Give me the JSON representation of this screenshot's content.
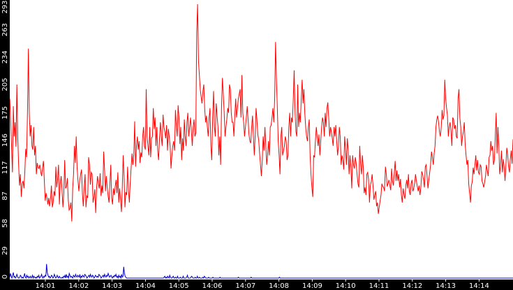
{
  "chart_data": {
    "type": "line",
    "x_tick_labels": [
      "14:01",
      "14:02",
      "14:03",
      "14:04",
      "14:05",
      "14:06",
      "14:07",
      "14:08",
      "14:09",
      "14:10",
      "14:11",
      "14:12",
      "14:13",
      "14:14"
    ],
    "y_tick_labels": [
      "0",
      "29",
      "58",
      "87",
      "117",
      "146",
      "175",
      "205",
      "234",
      "263",
      "293"
    ],
    "ylim": [
      0,
      293
    ],
    "grid": false,
    "colors": {
      "background": "#ffffff",
      "axis_band": "#000000",
      "series_red": "#ff0000",
      "series_blue": "#0000cc",
      "tick_text": "#ffffff"
    },
    "series": [
      {
        "color": "#ff0000",
        "values": [
          190,
          168,
          140,
          112,
          182,
          150,
          165,
          139,
          205,
          150,
          120,
          98,
          110,
          86,
          100,
          103,
          95,
          113,
          137,
          128,
          176,
          243,
          175,
          150,
          162,
          140,
          136,
          160,
          130,
          140,
          110,
          122,
          117,
          116,
          120,
          112,
          108,
          117,
          124,
          103,
          82,
          90,
          85,
          78,
          85,
          76,
          84,
          98,
          75,
          80,
          92,
          87,
          118,
          96,
          105,
          120,
          78,
          100,
          108,
          93,
          75,
          90,
          125,
          95,
          97,
          106,
          83,
          72,
          74,
          80,
          60,
          95,
          110,
          140,
          122,
          150,
          117,
          103,
          92,
          104,
          110,
          115,
          89,
          76,
          96,
          110,
          75,
          87,
          85,
          128,
          120,
          99,
          112,
          110,
          80,
          86,
          94,
          69,
          95,
          108,
          100,
          95,
          111,
          87,
          98,
          90,
          134,
          115,
          92,
          108,
          96,
          87,
          80,
          100,
          120,
          85,
          78,
          95,
          88,
          97,
          104,
          90,
          112,
          80,
          95,
          84,
          70,
          96,
          130,
          108,
          75,
          91,
          88,
          118,
          93,
          80,
          102,
          117,
          132,
          120,
          131,
          166,
          118,
          140,
          150,
          136,
          145,
          122,
          133,
          128,
          150,
          160,
          140,
          136,
          200,
          150,
          140,
          130,
          160,
          128,
          148,
          150,
          180,
          158,
          170,
          140,
          160,
          135,
          125,
          148,
          165,
          150,
          140,
          173,
          160,
          155,
          148,
          162,
          135,
          158,
          150,
          140,
          116,
          130,
          140,
          145,
          135,
          178,
          162,
          150,
          183,
          170,
          142,
          160,
          125,
          148,
          135,
          168,
          150,
          140,
          165,
          175,
          150,
          160,
          170,
          155,
          140,
          160,
          168,
          150,
          154,
          260,
          290,
          230,
          215,
          200,
          192,
          185,
          198,
          205,
          180,
          165,
          172,
          160,
          150,
          170,
          180,
          140,
          125,
          170,
          198,
          160,
          150,
          185,
          172,
          160,
          130,
          150,
          120,
          180,
          212,
          195,
          175,
          150,
          160,
          168,
          180,
          175,
          205,
          200,
          175,
          165,
          165,
          150,
          172,
          190,
          170,
          180,
          190,
          195,
          200,
          170,
          215,
          175,
          165,
          150,
          160,
          170,
          182,
          168,
          152,
          145,
          143,
          160,
          172,
          150,
          130,
          150,
          180,
          168,
          152,
          146,
          132,
          120,
          108,
          125,
          150,
          135,
          160,
          140,
          120,
          130,
          145,
          130,
          160,
          162,
          170,
          180,
          165,
          190,
          250,
          210,
          180,
          145,
          130,
          110,
          150,
          160,
          130,
          135,
          140,
          150,
          145,
          125,
          130,
          160,
          175,
          150,
          170,
          165,
          190,
          220,
          175,
          155,
          150,
          205,
          160,
          175,
          165,
          190,
          210,
          185,
          200,
          175,
          160,
          150,
          145,
          160,
          168,
          130,
          110,
          96,
          86,
          130,
          128,
          146,
          160,
          150,
          140,
          152,
          130,
          145,
          160,
          170,
          165,
          150,
          175,
          160,
          180,
          186,
          170,
          150,
          160,
          155,
          148,
          140,
          160,
          150,
          162,
          145,
          130,
          140,
          160,
          150,
          120,
          130,
          125,
          115,
          150,
          136,
          120,
          148,
          135,
          110,
          130,
          118,
          95,
          130,
          120,
          116,
          128,
          122,
          110,
          100,
          96,
          140,
          120,
          110,
          130,
          118,
          90,
          96,
          88,
          110,
          112,
          104,
          80,
          98,
          102,
          110,
          98,
          83,
          88,
          92,
          76,
          80,
          68,
          75,
          82,
          88,
          100,
          97,
          96,
          92,
          118,
          110,
          97,
          100,
          104,
          98,
          93,
          116,
          103,
          98,
          112,
          124,
          103,
          114,
          103,
          110,
          96,
          105,
          88,
          80,
          95,
          88,
          84,
          98,
          104,
          95,
          110,
          92,
          88,
          100,
          104,
          92,
          95,
          101,
          110,
          103,
          97,
          92,
          98,
          88,
          96,
          113,
          110,
          104,
          96,
          118,
          120,
          108,
          95,
          104,
          112,
          120,
          134,
          128,
          120,
          132,
          140,
          160,
          168,
          172,
          165,
          155,
          150,
          160,
          178,
          168,
          172,
          210,
          190,
          180,
          172,
          150,
          160,
          165,
          156,
          140,
          170,
          168,
          158,
          162,
          150,
          148,
          190,
          200,
          170,
          160,
          140,
          150,
          155,
          165,
          142,
          130,
          120,
          125,
          100,
          90,
          80,
          98,
          102,
          117,
          110,
          120,
          130,
          114,
          125,
          112,
          110,
          120,
          118,
          103,
          100,
          96,
          102,
          108,
          120,
          114,
          108,
          128,
          130,
          145,
          135,
          140,
          120,
          125,
          150,
          175,
          132,
          160,
          140,
          110,
          120,
          135,
          112,
          126,
          118,
          103,
          120,
          138,
          130,
          118,
          112,
          126,
          135,
          121,
          147
        ]
      },
      {
        "color": "#0000cc",
        "values": [
          1,
          5,
          2,
          0,
          3,
          6,
          1,
          2,
          0,
          1,
          4,
          2,
          0,
          0,
          1,
          3,
          2,
          0,
          1,
          0,
          2,
          5,
          1,
          0,
          3,
          1,
          2,
          0,
          1,
          2,
          0,
          1,
          3,
          0,
          2,
          1,
          0,
          1,
          0,
          2,
          1,
          3,
          0,
          1,
          2,
          4,
          1,
          0,
          2,
          1,
          3,
          2,
          15,
          6,
          3,
          1,
          2,
          0,
          1,
          3,
          2,
          0,
          1,
          4,
          2,
          0,
          1,
          3,
          1,
          0,
          2,
          1,
          0,
          0,
          1,
          0,
          2,
          1,
          3,
          0,
          4,
          1,
          2,
          0,
          5,
          3,
          1,
          2,
          1,
          0,
          3,
          2,
          1,
          4,
          2,
          1,
          3,
          2,
          1,
          4,
          0,
          2,
          1,
          3,
          2,
          1,
          4,
          3,
          2,
          0,
          1,
          2,
          3,
          1,
          4,
          2,
          1,
          3,
          2,
          0,
          1,
          3,
          2,
          1,
          2,
          1,
          4,
          3,
          2,
          0,
          1,
          2,
          3,
          1,
          4,
          2,
          1,
          3,
          2,
          5,
          3,
          1,
          2,
          3,
          1,
          0,
          2,
          1,
          3,
          2,
          4,
          1,
          2,
          0,
          3,
          1,
          2,
          0,
          4,
          1,
          2,
          12,
          5,
          2,
          1,
          0,
          0,
          0,
          0,
          0,
          0,
          0,
          0,
          0,
          0,
          0,
          0,
          0,
          0,
          0,
          0,
          0,
          0,
          0,
          0,
          0,
          0,
          0,
          0,
          0,
          0,
          0,
          0,
          0,
          0,
          0,
          0,
          0,
          0,
          0,
          0,
          0,
          0,
          0,
          0,
          0,
          0,
          0,
          0,
          0,
          0,
          0,
          0,
          0,
          0,
          0,
          0,
          0,
          1,
          2,
          0,
          1,
          0,
          2,
          1,
          0,
          3,
          1,
          0,
          0,
          1,
          2,
          0,
          0,
          1,
          0,
          0,
          2,
          0,
          0,
          0,
          1,
          0,
          0,
          0,
          2,
          0,
          0,
          0,
          0,
          1,
          3,
          0,
          0,
          0,
          0,
          1,
          2,
          1,
          0,
          0,
          0,
          1,
          0,
          0,
          2,
          0,
          0,
          1,
          0,
          0,
          0,
          0,
          1,
          0,
          2,
          1,
          0,
          0,
          0,
          0,
          1,
          0,
          0,
          0,
          0,
          0,
          1,
          0,
          0,
          0,
          0,
          0,
          0,
          0,
          0,
          0,
          1,
          0,
          0,
          0,
          0,
          0,
          0,
          0,
          0,
          0,
          0,
          0,
          0,
          0,
          0,
          0,
          0,
          0,
          0,
          0,
          0,
          0,
          0,
          0,
          0,
          0,
          1,
          0,
          0,
          0,
          0,
          0,
          0,
          0,
          0,
          0,
          0,
          0,
          0,
          0,
          0,
          0,
          0,
          0,
          1,
          0,
          0,
          0,
          0,
          0,
          0,
          0,
          0,
          0,
          0,
          0,
          0,
          0,
          0,
          0,
          0,
          0,
          0,
          0,
          0,
          0,
          0,
          0,
          0,
          0,
          0,
          0,
          0,
          0,
          0,
          0,
          0,
          0,
          0,
          0,
          0,
          0,
          0,
          0,
          1,
          0,
          0,
          0,
          0,
          0,
          0,
          0,
          0,
          0,
          0,
          0,
          0,
          0,
          0,
          0,
          0,
          0,
          0,
          0,
          0,
          0,
          0,
          0,
          0,
          0,
          0,
          0,
          0,
          0,
          0,
          0,
          0,
          0,
          0,
          0,
          0,
          0,
          0,
          0,
          0,
          0,
          0,
          0,
          0,
          0,
          0,
          0,
          0,
          0,
          0,
          0,
          0,
          0,
          0,
          0,
          0,
          0,
          0,
          0,
          0,
          0,
          0,
          0,
          0,
          0,
          0,
          0,
          0,
          0,
          0,
          0,
          0,
          0,
          0,
          0,
          0,
          0,
          0,
          0,
          0,
          0,
          0,
          0,
          0,
          0,
          0,
          0,
          0,
          0,
          0,
          0,
          0,
          0,
          0,
          0,
          0,
          0,
          0,
          0,
          0,
          0,
          0,
          0,
          0,
          0,
          0,
          0,
          0,
          0,
          0,
          0,
          0,
          0,
          0,
          0,
          0,
          0,
          0,
          0,
          0,
          0,
          0,
          0,
          0,
          0,
          0,
          0,
          0,
          0,
          0,
          0,
          0,
          0,
          0,
          0,
          0,
          0,
          0,
          0,
          0,
          0,
          0,
          0,
          0,
          0,
          0,
          0,
          0,
          0,
          0,
          0,
          0,
          0,
          0,
          0,
          0,
          0,
          0,
          0,
          0,
          0,
          0,
          0,
          0,
          0,
          0,
          0,
          0,
          0,
          0,
          0,
          0,
          0,
          0,
          0,
          0,
          0,
          0,
          0,
          0,
          0,
          0,
          0,
          0,
          0,
          0,
          0,
          0,
          0,
          0,
          0,
          0,
          0,
          0,
          0,
          0,
          0,
          0,
          0,
          0,
          0,
          0,
          0,
          0,
          0,
          0,
          0,
          0,
          0,
          0,
          0,
          0,
          0,
          0,
          0,
          0,
          0,
          0,
          0,
          0,
          0,
          0,
          0,
          0,
          0,
          0,
          0,
          0,
          0,
          0,
          0,
          0,
          0,
          0,
          0,
          0,
          0,
          0,
          0,
          0,
          0,
          0,
          0,
          0,
          0,
          0,
          0,
          0,
          0,
          0,
          0,
          0,
          0,
          0,
          0,
          0,
          0,
          0,
          0,
          0,
          0,
          0,
          0,
          0,
          0,
          0,
          0,
          0,
          0,
          0,
          0,
          0,
          0,
          0,
          0,
          0,
          0,
          0,
          0,
          0,
          0,
          0,
          0,
          0,
          0,
          0,
          0,
          0,
          0,
          0,
          0,
          0,
          0,
          0,
          0,
          0,
          0,
          0,
          0,
          0,
          0,
          0,
          0,
          0,
          0,
          0,
          0,
          0,
          0,
          0,
          0,
          0,
          0,
          0,
          0,
          0,
          0,
          0,
          0,
          0,
          0,
          0,
          0,
          0,
          0,
          0,
          0,
          0,
          0,
          0
        ]
      }
    ]
  }
}
